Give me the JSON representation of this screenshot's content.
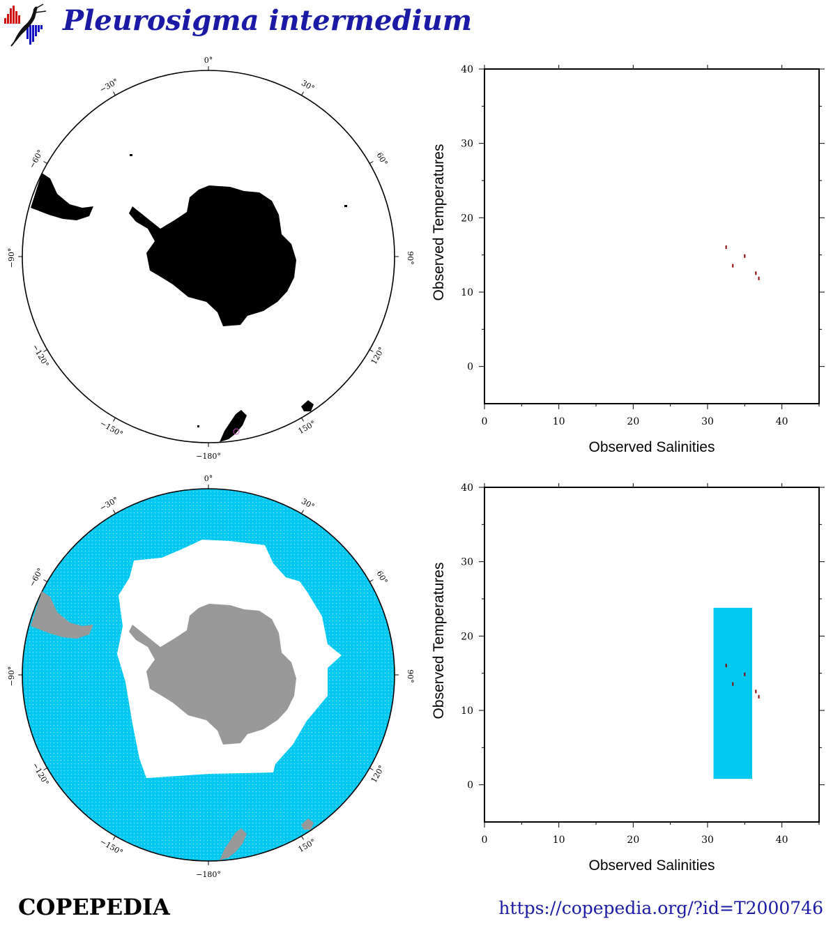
{
  "header": {
    "title": "Pleurosigma intermedium"
  },
  "footer": {
    "brand": "COPEPEDIA",
    "url": "https://copepedia.org/?id=T2000746"
  },
  "colors": {
    "title": "#1a1aa6",
    "ocean_cyan": "#00c8f0",
    "land_dark": "#000000",
    "land_grey": "#999999",
    "sample_mark": "#8b0000",
    "occurrence_ring": "#d050c0"
  },
  "maps": {
    "degree_labels": {
      "d0": "0°",
      "d30": "30°",
      "d60": "60°",
      "d90": "90°",
      "d120": "120°",
      "d150": "150°",
      "d180": "−180°",
      "dm150": "−150°",
      "dm120": "−120°",
      "dm90": "−90°",
      "dm60": "−60°",
      "dm30": "−30°"
    }
  },
  "chart_data": [
    {
      "type": "scatter",
      "xlabel": "Observed Salinities",
      "ylabel": "Observed Temperatures",
      "xlim": [
        0,
        45
      ],
      "ylim": [
        -5,
        40
      ],
      "x_ticks": [
        "0",
        "10",
        "20",
        "30",
        "40"
      ],
      "y_ticks": [
        "0",
        "10",
        "20",
        "30",
        "40"
      ],
      "points": [
        {
          "x": 32.5,
          "y": 16.0
        },
        {
          "x": 33.4,
          "y": 13.5
        },
        {
          "x": 35.0,
          "y": 14.8
        },
        {
          "x": 36.5,
          "y": 12.5
        },
        {
          "x": 36.9,
          "y": 11.8
        }
      ]
    },
    {
      "type": "scatter",
      "xlabel": "Observed Salinities",
      "ylabel": "Observed Temperatures",
      "xlim": [
        0,
        45
      ],
      "ylim": [
        -5,
        40
      ],
      "x_ticks": [
        "0",
        "10",
        "20",
        "30",
        "40"
      ],
      "y_ticks": [
        "0",
        "10",
        "20",
        "30",
        "40"
      ],
      "range_box": {
        "x": [
          30.8,
          36.0
        ],
        "y": [
          0.8,
          23.8
        ]
      },
      "points": [
        {
          "x": 32.5,
          "y": 16.0
        },
        {
          "x": 33.4,
          "y": 13.5
        },
        {
          "x": 35.0,
          "y": 14.8
        },
        {
          "x": 36.5,
          "y": 12.5
        },
        {
          "x": 36.9,
          "y": 11.8
        }
      ]
    }
  ]
}
